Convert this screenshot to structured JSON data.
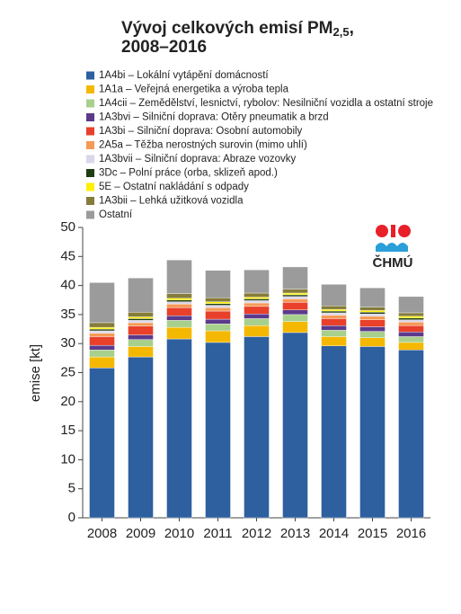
{
  "chart_data": {
    "type": "stacked-bar",
    "title": [
      "Vývoj celkových emisí PM",
      "2,5",
      ","
    ],
    "subtitle": "2008–2016",
    "y_label": "emise [kt]",
    "logo_text": "ČHMÚ",
    "categories": [
      "2008",
      "2009",
      "2010",
      "2011",
      "2012",
      "2013",
      "2014",
      "2015",
      "2016"
    ],
    "ylim": [
      0,
      50
    ],
    "yticks": [
      0,
      5,
      10,
      15,
      20,
      25,
      30,
      35,
      40,
      45,
      50
    ],
    "series": [
      {
        "name": "1A4bi – Lokální vytápění domácností",
        "color": "#2e5f9e",
        "values": [
          25.8,
          27.7,
          30.8,
          30.2,
          31.2,
          31.9,
          29.6,
          29.5,
          28.9
        ]
      },
      {
        "name": "1A1a – Veřejná energetika a výroba tepla",
        "color": "#f5b800",
        "values": [
          1.9,
          1.8,
          2.0,
          2.0,
          1.9,
          1.9,
          1.6,
          1.5,
          1.3
        ]
      },
      {
        "name": "1A4cii – Zemědělství, lesnictví, rybolov: Nesilniční vozidla a ostatní stroje",
        "color": "#a8d08d",
        "values": [
          1.2,
          1.2,
          1.2,
          1.2,
          1.2,
          1.2,
          1.1,
          1.1,
          1.0
        ]
      },
      {
        "name": "1A3bvi – Silniční doprava: Otěry pneumatik a brzd",
        "color": "#5b3a8c",
        "values": [
          0.8,
          0.8,
          0.8,
          0.8,
          0.8,
          0.8,
          0.8,
          0.8,
          0.8
        ]
      },
      {
        "name": "1A3bi – Silniční doprava: Osobní automobily",
        "color": "#e8402a",
        "values": [
          1.5,
          1.5,
          1.4,
          1.4,
          1.3,
          1.3,
          1.2,
          1.2,
          1.1
        ]
      },
      {
        "name": "2A5a – Těžba nerostných surovin (mimo uhlí)",
        "color": "#f59a57",
        "values": [
          0.6,
          0.6,
          0.6,
          0.6,
          0.6,
          0.6,
          0.6,
          0.6,
          0.6
        ]
      },
      {
        "name": "1A3bvii – Silniční doprava: Abraze vozovky",
        "color": "#dcd6ea",
        "values": [
          0.4,
          0.4,
          0.4,
          0.4,
          0.4,
          0.4,
          0.4,
          0.4,
          0.4
        ]
      },
      {
        "name": "3Dc – Polní práce (orba, sklizeň apod.)",
        "color": "#1f3d12",
        "values": [
          0.3,
          0.3,
          0.3,
          0.3,
          0.3,
          0.3,
          0.3,
          0.3,
          0.3
        ]
      },
      {
        "name": "5E – Ostatní nakládání s odpady",
        "color": "#ffef00",
        "values": [
          0.3,
          0.3,
          0.3,
          0.3,
          0.3,
          0.3,
          0.3,
          0.3,
          0.3
        ]
      },
      {
        "name": "1A3bii – Lehká užitková vozidla",
        "color": "#857c3c",
        "values": [
          0.8,
          0.8,
          0.8,
          0.7,
          0.7,
          0.7,
          0.6,
          0.6,
          0.6
        ]
      },
      {
        "name": "Ostatní",
        "color": "#9b9b9b",
        "values": [
          6.9,
          5.9,
          5.8,
          4.7,
          4.0,
          3.8,
          3.7,
          3.3,
          2.8
        ]
      }
    ]
  }
}
